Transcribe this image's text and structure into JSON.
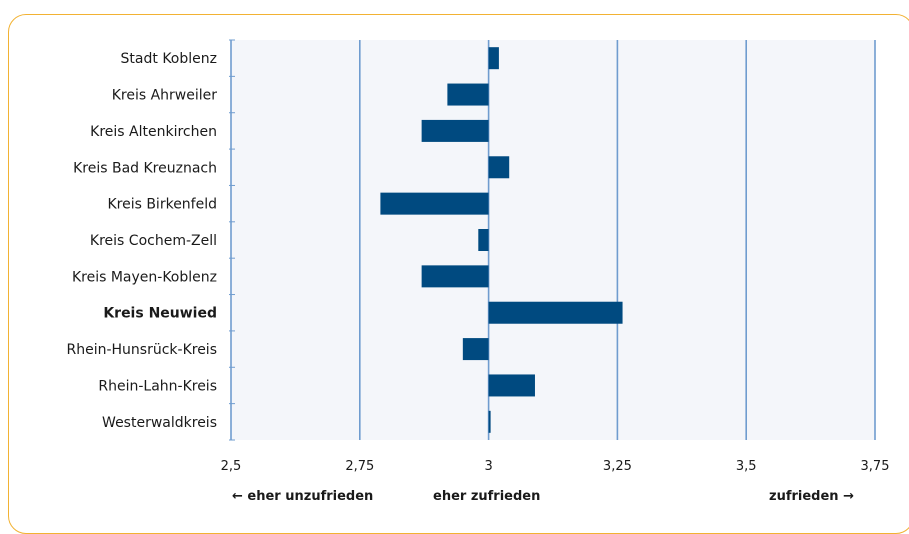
{
  "chart_data": {
    "type": "bar",
    "orientation": "horizontal",
    "categories": [
      "Stadt Koblenz",
      "Kreis Ahrweiler",
      "Kreis Altenkirchen",
      "Kreis Bad Kreuznach",
      "Kreis Birkenfeld",
      "Kreis Cochem-Zell",
      "Kreis Mayen-Koblenz",
      "Kreis Neuwied",
      "Rhein-Hunsrück-Kreis",
      "Rhein-Lahn-Kreis",
      "Westerwaldkreis"
    ],
    "highlighted_category": "Kreis Neuwied",
    "baseline": 3.0,
    "values": [
      3.02,
      2.92,
      2.87,
      3.04,
      2.79,
      2.98,
      2.87,
      3.26,
      2.95,
      3.09,
      3.0
    ],
    "xlim": [
      2.5,
      3.75
    ],
    "xticks": [
      "2,5",
      "2,75",
      "3",
      "3,25",
      "3,5",
      "3,75"
    ],
    "xtick_values": [
      2.5,
      2.75,
      3.0,
      3.25,
      3.5,
      3.75
    ],
    "grid": "vertical",
    "bar_color": "#004a80",
    "grid_color": "#6f9ccf",
    "plot_background": "#f4f6fa",
    "frame_color": "#f2b233",
    "scale_labels": {
      "left": "← eher unzufrieden",
      "center": "eher zufrieden",
      "right": "zufrieden →"
    }
  }
}
